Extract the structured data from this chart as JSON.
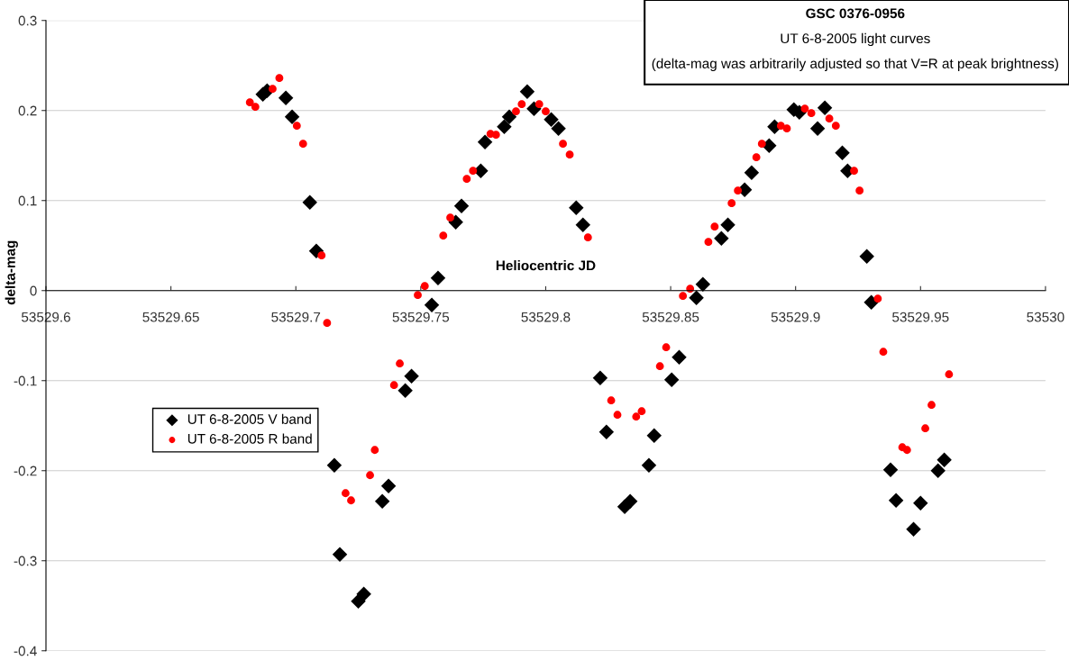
{
  "chart_data": {
    "type": "scatter",
    "title": "GSC 0376-0956",
    "subtitle": "UT 6-8-2005 light curves",
    "annotations": [
      "(delta-mag was arbitrarily adjusted so that V=R at peak brightness)"
    ],
    "xlabel": "Heliocentric JD",
    "ylabel": "delta-mag",
    "xlim": [
      53529.6,
      53530
    ],
    "xticks": [
      53529.6,
      53529.65,
      53529.7,
      53529.75,
      53529.8,
      53529.85,
      53529.9,
      53529.95,
      53530
    ],
    "ylim": [
      -0.4,
      0.3
    ],
    "yticks": [
      -0.4,
      -0.3,
      -0.2,
      -0.1,
      0,
      0.1,
      0.2,
      0.3
    ],
    "grid": "y",
    "legend": "center left",
    "series": [
      {
        "name": "UT 6-8-2005 V band",
        "color": "#000000",
        "marker": "diamond",
        "x": [
          53529.6868,
          53529.6885,
          53529.696,
          53529.6985,
          53529.7056,
          53529.7082,
          53529.7154,
          53529.7176,
          53529.725,
          53529.7272,
          53529.7346,
          53529.7371,
          53529.7438,
          53529.7463,
          53529.7544,
          53529.7569,
          53529.764,
          53529.7663,
          53529.774,
          53529.7757,
          53529.7834,
          53529.7854,
          53529.7926,
          53529.7953,
          53529.8022,
          53529.8051,
          53529.8122,
          53529.8149,
          53529.8218,
          53529.8243,
          53529.8316,
          53529.8338,
          53529.8413,
          53529.8434,
          53529.8504,
          53529.8534,
          53529.8603,
          53529.8629,
          53529.8703,
          53529.8729,
          53529.8796,
          53529.8824,
          53529.8894,
          53529.8916,
          53529.8993,
          53529.9015,
          53529.9088,
          53529.9117,
          53529.9187,
          53529.9208,
          53529.9285,
          53529.9303,
          53529.938,
          53529.9402,
          53529.9472,
          53529.95,
          53529.957,
          53529.9595
        ],
        "values": [
          0.218,
          0.222,
          0.214,
          0.193,
          0.098,
          0.044,
          -0.194,
          -0.293,
          -0.345,
          -0.337,
          -0.234,
          -0.217,
          -0.111,
          -0.095,
          -0.016,
          0.014,
          0.076,
          0.094,
          0.133,
          0.165,
          0.182,
          0.193,
          0.221,
          0.202,
          0.19,
          0.18,
          0.092,
          0.073,
          -0.097,
          -0.157,
          -0.24,
          -0.234,
          -0.194,
          -0.161,
          -0.099,
          -0.074,
          -0.008,
          0.007,
          0.058,
          0.073,
          0.112,
          0.131,
          0.161,
          0.182,
          0.201,
          0.198,
          0.18,
          0.203,
          0.153,
          0.133,
          0.038,
          -0.013,
          -0.199,
          -0.233,
          -0.265,
          -0.236,
          -0.2,
          -0.188
        ]
      },
      {
        "name": "UT 6-8-2005 R band",
        "color": "#ff0000",
        "marker": "circle",
        "x": [
          53529.6816,
          53529.6838,
          53529.6907,
          53529.6934,
          53529.7004,
          53529.7029,
          53529.7103,
          53529.7125,
          53529.7199,
          53529.7221,
          53529.7297,
          53529.7316,
          53529.7393,
          53529.7416,
          53529.7488,
          53529.7516,
          53529.759,
          53529.7618,
          53529.7684,
          53529.7709,
          53529.7779,
          53529.7801,
          53529.7881,
          53529.7904,
          53529.7974,
          53529.8,
          53529.8069,
          53529.8096,
          53529.8169,
          53529.8262,
          53529.8287,
          53529.8362,
          53529.8384,
          53529.8457,
          53529.8482,
          53529.8549,
          53529.8578,
          53529.8651,
          53529.8676,
          53529.8744,
          53529.8769,
          53529.8843,
          53529.8865,
          53529.8941,
          53529.8965,
          53529.9037,
          53529.9063,
          53529.9135,
          53529.9161,
          53529.9234,
          53529.9256,
          53529.9329,
          53529.9351,
          53529.9427,
          53529.9446,
          53529.9519,
          53529.9544,
          53529.9614
        ],
        "values": [
          0.209,
          0.204,
          0.224,
          0.236,
          0.183,
          0.163,
          0.039,
          -0.036,
          -0.225,
          -0.233,
          -0.205,
          -0.177,
          -0.105,
          -0.081,
          -0.005,
          0.005,
          0.061,
          0.081,
          0.124,
          0.133,
          0.174,
          0.173,
          0.199,
          0.207,
          0.207,
          0.199,
          0.163,
          0.151,
          0.059,
          -0.122,
          -0.138,
          -0.14,
          -0.134,
          -0.084,
          -0.063,
          -0.006,
          0.002,
          0.054,
          0.071,
          0.097,
          0.111,
          0.148,
          0.163,
          0.183,
          0.18,
          0.202,
          0.197,
          0.191,
          0.183,
          0.133,
          0.111,
          -0.009,
          -0.068,
          -0.174,
          -0.177,
          -0.153,
          -0.127,
          -0.093
        ]
      }
    ]
  }
}
